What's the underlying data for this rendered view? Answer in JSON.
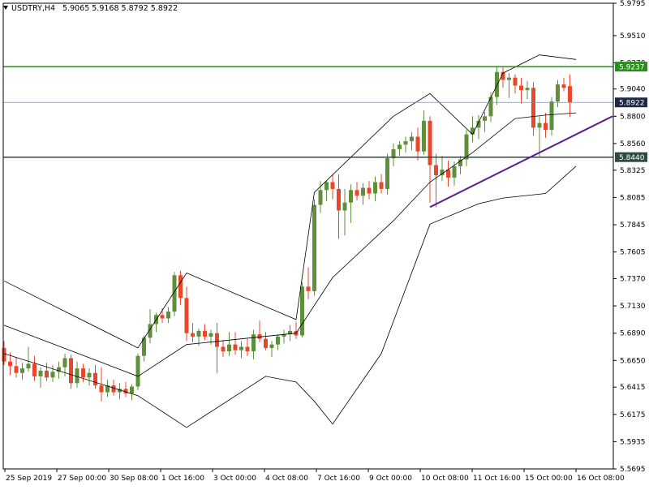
{
  "header": {
    "symbol": "USDTRY,H4",
    "ohlc": "5.9065 5.9168 5.8792 5.8922",
    "menu_icon": "triangle-down-icon"
  },
  "colors": {
    "background": "#ffffff",
    "frame": "#000000",
    "bull_candle": "#5f8f3a",
    "bear_candle": "#e8472b",
    "bollinger": "#000000",
    "resistance_line": "#2e8b22",
    "support_line": "#2d4a44",
    "trend_line": "#5b1f8f",
    "current_price_line": "#7f8fa6",
    "current_price_badge": "#1e2a44"
  },
  "chart_data": {
    "type": "candlestick",
    "symbol": "USDTRY",
    "timeframe": "H4",
    "y_ticks": [
      "5.9795",
      "5.9510",
      "5.9270",
      "5.9040",
      "5.8800",
      "5.8560",
      "5.8325",
      "5.8085",
      "5.7845",
      "5.7605",
      "5.7370",
      "5.7130",
      "5.6890",
      "5.6650",
      "5.6415",
      "5.6175",
      "5.5935",
      "5.5695"
    ],
    "x_ticks": [
      "25 Sep 2019",
      "27 Sep 00:00",
      "30 Sep 08:00",
      "1 Oct 16:00",
      "3 Oct 00:00",
      "4 Oct 08:00",
      "7 Oct 16:00",
      "9 Oct 00:00",
      "10 Oct 08:00",
      "11 Oct 16:00",
      "15 Oct 00:00",
      "16 Oct 08:00"
    ],
    "ylim": [
      5.5695,
      5.9795
    ],
    "current_price": 5.8922,
    "candles": [
      {
        "o": 5.676,
        "h": 5.682,
        "l": 5.661,
        "c": 5.664
      },
      {
        "o": 5.664,
        "h": 5.672,
        "l": 5.652,
        "c": 5.66
      },
      {
        "o": 5.66,
        "h": 5.668,
        "l": 5.65,
        "c": 5.654
      },
      {
        "o": 5.654,
        "h": 5.663,
        "l": 5.648,
        "c": 5.658
      },
      {
        "o": 5.658,
        "h": 5.677,
        "l": 5.655,
        "c": 5.662
      },
      {
        "o": 5.662,
        "h": 5.669,
        "l": 5.647,
        "c": 5.651
      },
      {
        "o": 5.651,
        "h": 5.659,
        "l": 5.641,
        "c": 5.656
      },
      {
        "o": 5.656,
        "h": 5.663,
        "l": 5.647,
        "c": 5.65
      },
      {
        "o": 5.65,
        "h": 5.661,
        "l": 5.646,
        "c": 5.655
      },
      {
        "o": 5.655,
        "h": 5.664,
        "l": 5.649,
        "c": 5.659
      },
      {
        "o": 5.659,
        "h": 5.671,
        "l": 5.651,
        "c": 5.667
      },
      {
        "o": 5.667,
        "h": 5.67,
        "l": 5.64,
        "c": 5.645
      },
      {
        "o": 5.645,
        "h": 5.664,
        "l": 5.641,
        "c": 5.658
      },
      {
        "o": 5.658,
        "h": 5.662,
        "l": 5.646,
        "c": 5.65
      },
      {
        "o": 5.65,
        "h": 5.658,
        "l": 5.643,
        "c": 5.654
      },
      {
        "o": 5.654,
        "h": 5.661,
        "l": 5.64,
        "c": 5.643
      },
      {
        "o": 5.643,
        "h": 5.659,
        "l": 5.629,
        "c": 5.637
      },
      {
        "o": 5.637,
        "h": 5.648,
        "l": 5.633,
        "c": 5.643
      },
      {
        "o": 5.643,
        "h": 5.648,
        "l": 5.634,
        "c": 5.637
      },
      {
        "o": 5.637,
        "h": 5.645,
        "l": 5.631,
        "c": 5.64
      },
      {
        "o": 5.64,
        "h": 5.646,
        "l": 5.633,
        "c": 5.636
      },
      {
        "o": 5.636,
        "h": 5.644,
        "l": 5.63,
        "c": 5.642
      },
      {
        "o": 5.642,
        "h": 5.671,
        "l": 5.639,
        "c": 5.669
      },
      {
        "o": 5.669,
        "h": 5.687,
        "l": 5.664,
        "c": 5.685
      },
      {
        "o": 5.685,
        "h": 5.71,
        "l": 5.68,
        "c": 5.697
      },
      {
        "o": 5.697,
        "h": 5.707,
        "l": 5.69,
        "c": 5.705
      },
      {
        "o": 5.705,
        "h": 5.711,
        "l": 5.698,
        "c": 5.702
      },
      {
        "o": 5.702,
        "h": 5.712,
        "l": 5.698,
        "c": 5.708
      },
      {
        "o": 5.708,
        "h": 5.743,
        "l": 5.704,
        "c": 5.74
      },
      {
        "o": 5.74,
        "h": 5.744,
        "l": 5.714,
        "c": 5.72
      },
      {
        "o": 5.72,
        "h": 5.73,
        "l": 5.682,
        "c": 5.689
      },
      {
        "o": 5.689,
        "h": 5.698,
        "l": 5.681,
        "c": 5.686
      },
      {
        "o": 5.686,
        "h": 5.693,
        "l": 5.678,
        "c": 5.691
      },
      {
        "o": 5.691,
        "h": 5.697,
        "l": 5.683,
        "c": 5.686
      },
      {
        "o": 5.686,
        "h": 5.692,
        "l": 5.679,
        "c": 5.689
      },
      {
        "o": 5.689,
        "h": 5.698,
        "l": 5.654,
        "c": 5.677
      },
      {
        "o": 5.677,
        "h": 5.683,
        "l": 5.668,
        "c": 5.673
      },
      {
        "o": 5.673,
        "h": 5.69,
        "l": 5.669,
        "c": 5.679
      },
      {
        "o": 5.679,
        "h": 5.69,
        "l": 5.67,
        "c": 5.674
      },
      {
        "o": 5.674,
        "h": 5.682,
        "l": 5.667,
        "c": 5.677
      },
      {
        "o": 5.677,
        "h": 5.684,
        "l": 5.669,
        "c": 5.673
      },
      {
        "o": 5.673,
        "h": 5.692,
        "l": 5.666,
        "c": 5.688
      },
      {
        "o": 5.688,
        "h": 5.7,
        "l": 5.681,
        "c": 5.684
      },
      {
        "o": 5.684,
        "h": 5.69,
        "l": 5.674,
        "c": 5.676
      },
      {
        "o": 5.676,
        "h": 5.682,
        "l": 5.668,
        "c": 5.679
      },
      {
        "o": 5.679,
        "h": 5.688,
        "l": 5.674,
        "c": 5.686
      },
      {
        "o": 5.686,
        "h": 5.692,
        "l": 5.68,
        "c": 5.688
      },
      {
        "o": 5.688,
        "h": 5.696,
        "l": 5.682,
        "c": 5.691
      },
      {
        "o": 5.691,
        "h": 5.699,
        "l": 5.684,
        "c": 5.687
      },
      {
        "o": 5.687,
        "h": 5.734,
        "l": 5.685,
        "c": 5.73
      },
      {
        "o": 5.73,
        "h": 5.747,
        "l": 5.719,
        "c": 5.726
      },
      {
        "o": 5.726,
        "h": 5.807,
        "l": 5.722,
        "c": 5.802
      },
      {
        "o": 5.802,
        "h": 5.823,
        "l": 5.795,
        "c": 5.815
      },
      {
        "o": 5.815,
        "h": 5.823,
        "l": 5.805,
        "c": 5.822
      },
      {
        "o": 5.822,
        "h": 5.829,
        "l": 5.807,
        "c": 5.816
      },
      {
        "o": 5.816,
        "h": 5.829,
        "l": 5.772,
        "c": 5.797
      },
      {
        "o": 5.797,
        "h": 5.816,
        "l": 5.775,
        "c": 5.804
      },
      {
        "o": 5.804,
        "h": 5.82,
        "l": 5.786,
        "c": 5.815
      },
      {
        "o": 5.815,
        "h": 5.822,
        "l": 5.806,
        "c": 5.81
      },
      {
        "o": 5.81,
        "h": 5.821,
        "l": 5.802,
        "c": 5.817
      },
      {
        "o": 5.817,
        "h": 5.823,
        "l": 5.807,
        "c": 5.812
      },
      {
        "o": 5.812,
        "h": 5.827,
        "l": 5.805,
        "c": 5.822
      },
      {
        "o": 5.822,
        "h": 5.829,
        "l": 5.812,
        "c": 5.816
      },
      {
        "o": 5.816,
        "h": 5.847,
        "l": 5.811,
        "c": 5.843
      },
      {
        "o": 5.843,
        "h": 5.856,
        "l": 5.836,
        "c": 5.851
      },
      {
        "o": 5.851,
        "h": 5.858,
        "l": 5.845,
        "c": 5.855
      },
      {
        "o": 5.855,
        "h": 5.862,
        "l": 5.848,
        "c": 5.858
      },
      {
        "o": 5.858,
        "h": 5.866,
        "l": 5.85,
        "c": 5.862
      },
      {
        "o": 5.862,
        "h": 5.87,
        "l": 5.841,
        "c": 5.849
      },
      {
        "o": 5.849,
        "h": 5.885,
        "l": 5.846,
        "c": 5.876
      },
      {
        "o": 5.876,
        "h": 5.88,
        "l": 5.804,
        "c": 5.837
      },
      {
        "o": 5.837,
        "h": 5.847,
        "l": 5.8,
        "c": 5.828
      },
      {
        "o": 5.828,
        "h": 5.845,
        "l": 5.823,
        "c": 5.833
      },
      {
        "o": 5.833,
        "h": 5.841,
        "l": 5.818,
        "c": 5.826
      },
      {
        "o": 5.826,
        "h": 5.84,
        "l": 5.819,
        "c": 5.836
      },
      {
        "o": 5.836,
        "h": 5.845,
        "l": 5.829,
        "c": 5.842
      },
      {
        "o": 5.842,
        "h": 5.868,
        "l": 5.836,
        "c": 5.864
      },
      {
        "o": 5.864,
        "h": 5.88,
        "l": 5.857,
        "c": 5.87
      },
      {
        "o": 5.87,
        "h": 5.881,
        "l": 5.86,
        "c": 5.876
      },
      {
        "o": 5.876,
        "h": 5.884,
        "l": 5.866,
        "c": 5.88
      },
      {
        "o": 5.88,
        "h": 5.901,
        "l": 5.875,
        "c": 5.897
      },
      {
        "o": 5.897,
        "h": 5.924,
        "l": 5.89,
        "c": 5.919
      },
      {
        "o": 5.919,
        "h": 5.923,
        "l": 5.905,
        "c": 5.912
      },
      {
        "o": 5.912,
        "h": 5.918,
        "l": 5.896,
        "c": 5.914
      },
      {
        "o": 5.914,
        "h": 5.917,
        "l": 5.9,
        "c": 5.907
      },
      {
        "o": 5.907,
        "h": 5.914,
        "l": 5.891,
        "c": 5.903
      },
      {
        "o": 5.903,
        "h": 5.911,
        "l": 5.895,
        "c": 5.905
      },
      {
        "o": 5.905,
        "h": 5.91,
        "l": 5.863,
        "c": 5.87
      },
      {
        "o": 5.87,
        "h": 5.88,
        "l": 5.844,
        "c": 5.874
      },
      {
        "o": 5.874,
        "h": 5.883,
        "l": 5.861,
        "c": 5.868
      },
      {
        "o": 5.868,
        "h": 5.897,
        "l": 5.863,
        "c": 5.893
      },
      {
        "o": 5.893,
        "h": 5.912,
        "l": 5.888,
        "c": 5.908
      },
      {
        "o": 5.908,
        "h": 5.914,
        "l": 5.902,
        "c": 5.905
      },
      {
        "o": 5.9065,
        "h": 5.9168,
        "l": 5.8792,
        "c": 5.8922
      }
    ],
    "bollinger": {
      "upper": [
        [
          0,
          5.735
        ],
        [
          22,
          5.676
        ],
        [
          30,
          5.742
        ],
        [
          48,
          5.701
        ],
        [
          51,
          5.813
        ],
        [
          64,
          5.88
        ],
        [
          70,
          5.9
        ],
        [
          77,
          5.864
        ],
        [
          82,
          5.918
        ],
        [
          88,
          5.934
        ],
        [
          94,
          5.93
        ]
      ],
      "middle": [
        [
          0,
          5.696
        ],
        [
          22,
          5.651
        ],
        [
          30,
          5.679
        ],
        [
          48,
          5.689
        ],
        [
          54,
          5.738
        ],
        [
          64,
          5.788
        ],
        [
          70,
          5.822
        ],
        [
          77,
          5.848
        ],
        [
          84,
          5.878
        ],
        [
          89,
          5.881
        ],
        [
          94,
          5.883
        ]
      ],
      "lower": [
        [
          0,
          5.671
        ],
        [
          22,
          5.634
        ],
        [
          30,
          5.606
        ],
        [
          43,
          5.651
        ],
        [
          48,
          5.646
        ],
        [
          51,
          5.629
        ],
        [
          54,
          5.609
        ],
        [
          62,
          5.671
        ],
        [
          70,
          5.785
        ],
        [
          78,
          5.803
        ],
        [
          82,
          5.808
        ],
        [
          89,
          5.812
        ],
        [
          94,
          5.836
        ]
      ]
    },
    "levels": [
      {
        "value": 5.9237,
        "label": "5.9237",
        "kind": "resistance"
      },
      {
        "value": 5.844,
        "label": "5.8440",
        "kind": "support"
      }
    ],
    "trendline": {
      "from": [
        70,
        5.8
      ],
      "to": [
        100,
        5.88
      ]
    },
    "grid": false
  }
}
